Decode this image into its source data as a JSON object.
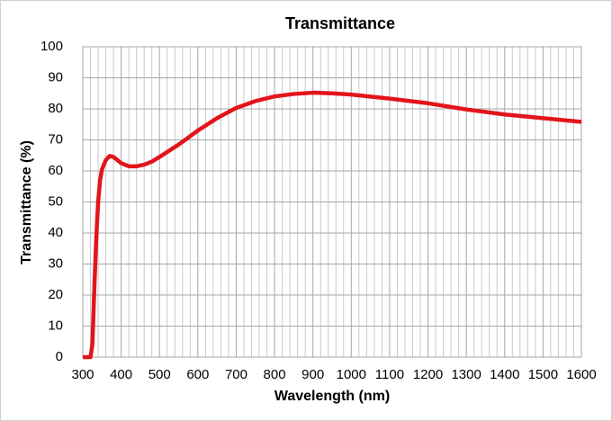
{
  "chart_data": {
    "type": "line",
    "title": "Transmittance",
    "x_label": "Wavelength (nm)",
    "y_label": "Transmittance (%)",
    "x": [
      300,
      320,
      325,
      330,
      335,
      340,
      345,
      350,
      360,
      370,
      380,
      390,
      400,
      420,
      440,
      460,
      480,
      500,
      550,
      600,
      650,
      700,
      750,
      800,
      850,
      900,
      950,
      1000,
      1100,
      1200,
      1300,
      1400,
      1500,
      1600
    ],
    "series": [
      {
        "name": "Transmittance",
        "color": "#e3141b",
        "values": [
          0,
          0,
          4,
          22,
          38,
          50,
          57,
          60.5,
          63.5,
          64.8,
          64.5,
          63.5,
          62.5,
          61.5,
          61.5,
          62,
          63,
          64.5,
          68.5,
          73,
          77,
          80.3,
          82.5,
          84,
          84.8,
          85.2,
          85,
          84.6,
          83.3,
          81.8,
          79.8,
          78.2,
          77,
          75.8
        ]
      }
    ],
    "xlim": [
      300,
      1600
    ],
    "ylim": [
      0,
      100
    ],
    "xticks": [
      300,
      400,
      500,
      600,
      700,
      800,
      900,
      1000,
      1100,
      1200,
      1300,
      1400,
      1500,
      1600
    ],
    "yticks": [
      0,
      10,
      20,
      30,
      40,
      50,
      60,
      70,
      80,
      90,
      100
    ],
    "grid": true,
    "minor_grid_divisions": 5
  }
}
